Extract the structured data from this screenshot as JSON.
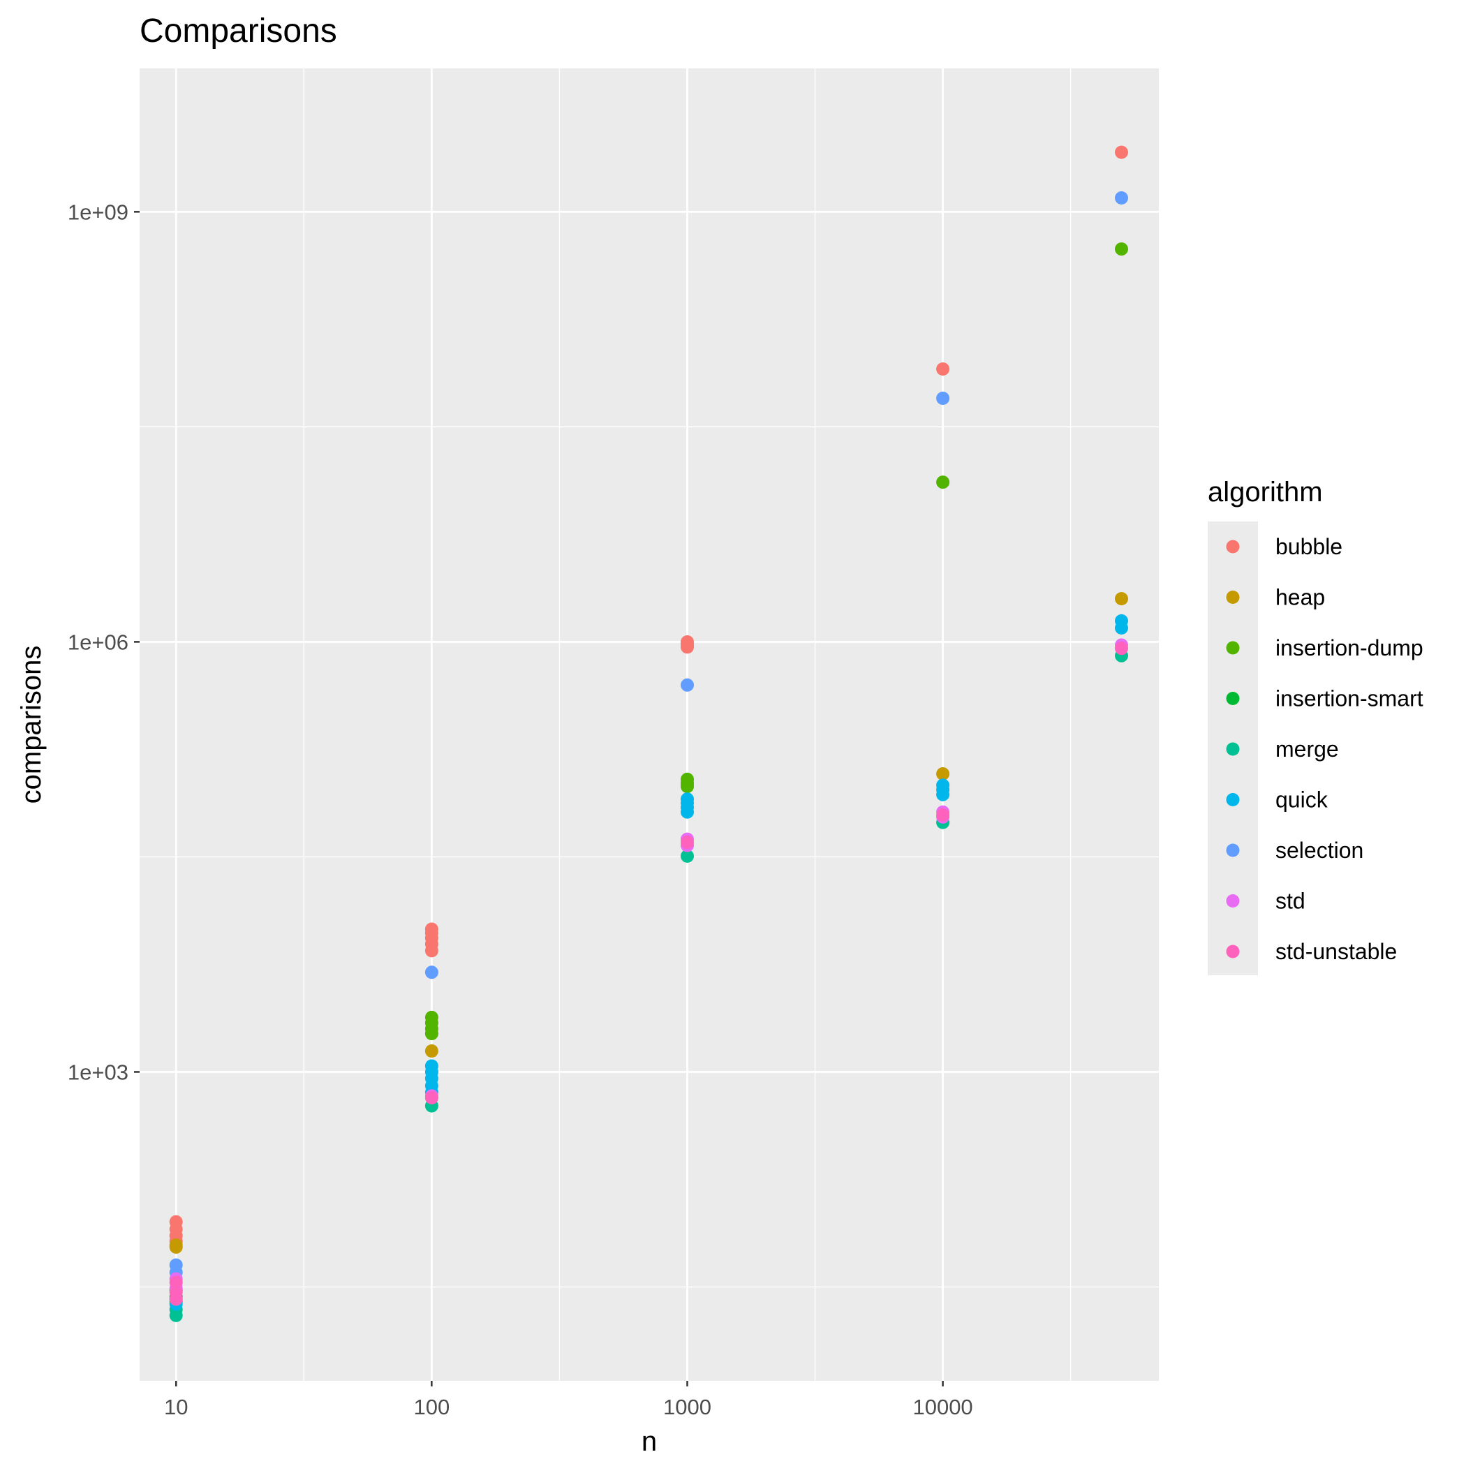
{
  "chart_data": {
    "type": "scatter",
    "title": "Comparisons",
    "xlabel": "n",
    "ylabel": "comparisons",
    "x_scale": "log10",
    "y_scale": "log10",
    "xlim": [
      7.2,
      70000
    ],
    "ylim": [
      7,
      10000000000
    ],
    "x_ticks": [
      {
        "value": 10,
        "label": "10"
      },
      {
        "value": 100,
        "label": "100"
      },
      {
        "value": 1000,
        "label": "1000"
      },
      {
        "value": 10000,
        "label": "10000"
      }
    ],
    "y_ticks": [
      {
        "value": 1000,
        "label": "1e+03"
      },
      {
        "value": 1000000,
        "label": "1e+06"
      },
      {
        "value": 1000000000,
        "label": "1e+09"
      }
    ],
    "grid": true,
    "legend": {
      "title": "algorithm",
      "position": "right"
    },
    "series": [
      {
        "name": "bubble",
        "color": "#F8766D",
        "points": [
          [
            10,
            90
          ],
          [
            10,
            80
          ],
          [
            10,
            72
          ],
          [
            10,
            66
          ],
          [
            100,
            9900
          ],
          [
            100,
            9300
          ],
          [
            100,
            8600
          ],
          [
            100,
            7800
          ],
          [
            100,
            7000
          ],
          [
            1000,
            999000
          ],
          [
            1000,
            960000
          ],
          [
            1000,
            920000
          ],
          [
            10000,
            80000000
          ],
          [
            50000,
            2600000000
          ]
        ]
      },
      {
        "name": "heap",
        "color": "#C49A00",
        "points": [
          [
            10,
            62
          ],
          [
            10,
            60
          ],
          [
            100,
            1400
          ],
          [
            1000,
            100000
          ],
          [
            10000,
            120000
          ],
          [
            50000,
            2000000
          ]
        ]
      },
      {
        "name": "insertion-dump",
        "color": "#53B400",
        "points": [
          [
            100,
            2400
          ],
          [
            100,
            2200
          ],
          [
            100,
            2000
          ],
          [
            100,
            1850
          ],
          [
            1000,
            110000
          ],
          [
            1000,
            104000
          ],
          [
            1000,
            98000
          ],
          [
            10000,
            13000000
          ],
          [
            50000,
            550000000
          ]
        ]
      },
      {
        "name": "insertion-smart",
        "color": "#00B932",
        "points": [
          [
            10,
            30
          ],
          [
            10,
            27
          ],
          [
            10,
            25
          ]
        ]
      },
      {
        "name": "merge",
        "color": "#00C094",
        "points": [
          [
            10,
            22
          ],
          [
            10,
            20
          ],
          [
            100,
            580
          ],
          [
            1000,
            32000
          ],
          [
            10000,
            55000
          ],
          [
            50000,
            800000
          ]
        ]
      },
      {
        "name": "quick",
        "color": "#00B6EB",
        "points": [
          [
            10,
            26
          ],
          [
            10,
            24
          ],
          [
            100,
            1100
          ],
          [
            100,
            1000
          ],
          [
            100,
            900
          ],
          [
            100,
            800
          ],
          [
            100,
            720
          ],
          [
            1000,
            80000
          ],
          [
            1000,
            75000
          ],
          [
            1000,
            70000
          ],
          [
            1000,
            65000
          ],
          [
            10000,
            100000
          ],
          [
            10000,
            93000
          ],
          [
            10000,
            86000
          ],
          [
            50000,
            1400000
          ],
          [
            50000,
            1250000
          ]
        ]
      },
      {
        "name": "selection",
        "color": "#619CFF",
        "points": [
          [
            10,
            45
          ],
          [
            10,
            40
          ],
          [
            100,
            4950
          ],
          [
            1000,
            499500
          ],
          [
            10000,
            49995000
          ],
          [
            50000,
            1250000000
          ]
        ]
      },
      {
        "name": "std",
        "color": "#E76BF3",
        "points": [
          [
            10,
            36
          ],
          [
            10,
            31
          ],
          [
            100,
            680
          ],
          [
            1000,
            42000
          ],
          [
            1000,
            38000
          ],
          [
            10000,
            65000
          ],
          [
            10000,
            60000
          ],
          [
            50000,
            950000
          ]
        ]
      },
      {
        "name": "std-unstable",
        "color": "#FF62BC",
        "points": [
          [
            10,
            34
          ],
          [
            10,
            29
          ],
          [
            10,
            26
          ],
          [
            100,
            660
          ],
          [
            1000,
            40000
          ],
          [
            10000,
            62000
          ],
          [
            50000,
            900000
          ]
        ]
      }
    ]
  }
}
